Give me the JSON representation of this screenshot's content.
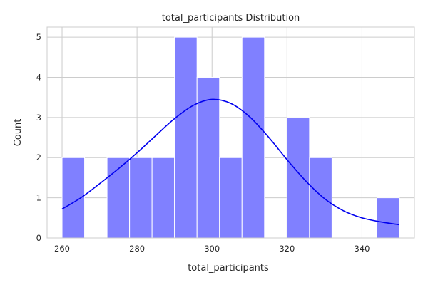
{
  "chart_data": {
    "type": "bar",
    "title": "total_participants Distribution",
    "xlabel": "total_participants",
    "ylabel": "Count",
    "xlim": [
      256,
      354
    ],
    "ylim": [
      0,
      5.25
    ],
    "x_ticks": [
      260,
      280,
      300,
      320,
      340
    ],
    "y_ticks": [
      0,
      1,
      2,
      3,
      4,
      5
    ],
    "grid": true,
    "bins": [
      {
        "x0": 260,
        "x1": 266,
        "count": 2
      },
      {
        "x0": 266,
        "x1": 272,
        "count": 0
      },
      {
        "x0": 272,
        "x1": 278,
        "count": 2
      },
      {
        "x0": 278,
        "x1": 284,
        "count": 2
      },
      {
        "x0": 284,
        "x1": 290,
        "count": 2
      },
      {
        "x0": 290,
        "x1": 296,
        "count": 5
      },
      {
        "x0": 296,
        "x1": 302,
        "count": 4
      },
      {
        "x0": 302,
        "x1": 308,
        "count": 2
      },
      {
        "x0": 308,
        "x1": 314,
        "count": 5
      },
      {
        "x0": 314,
        "x1": 320,
        "count": 0
      },
      {
        "x0": 320,
        "x1": 326,
        "count": 3
      },
      {
        "x0": 326,
        "x1": 332,
        "count": 2
      },
      {
        "x0": 332,
        "x1": 338,
        "count": 0
      },
      {
        "x0": 338,
        "x1": 344,
        "count": 0
      },
      {
        "x0": 344,
        "x1": 350,
        "count": 1
      }
    ],
    "kde": {
      "x": [
        260,
        265,
        270,
        275,
        280,
        285,
        290,
        295,
        300,
        305,
        310,
        315,
        320,
        325,
        330,
        335,
        340,
        345,
        350
      ],
      "y": [
        0.72,
        1.0,
        1.35,
        1.72,
        2.12,
        2.55,
        2.97,
        3.3,
        3.45,
        3.35,
        3.02,
        2.52,
        1.95,
        1.42,
        0.98,
        0.68,
        0.5,
        0.4,
        0.33
      ]
    },
    "colors": {
      "bar_fill": "#8080ff",
      "bar_edge": "#ffffff",
      "kde_line": "#0000ee",
      "grid": "#cccccc",
      "text": "#262626"
    }
  }
}
